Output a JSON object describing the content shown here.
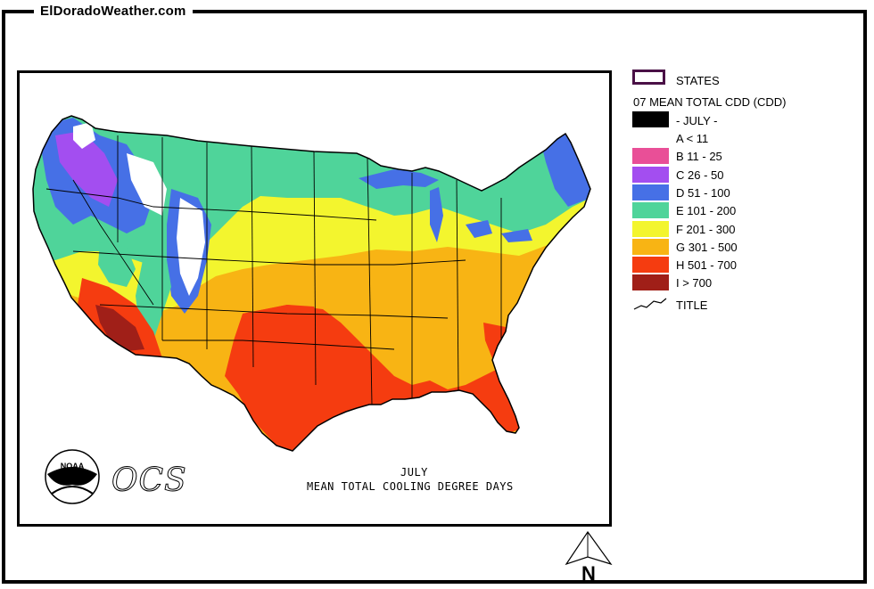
{
  "site": {
    "title": "ElDoradoWeather.com"
  },
  "map": {
    "caption_month": "JULY",
    "caption_title": "MEAN TOTAL COOLING DEGREE DAYS",
    "logo_agency": "NOAA",
    "logo_office": "OCS"
  },
  "legend": {
    "states_label": "STATES",
    "layer_title": "07 MEAN TOTAL CDD (CDD)",
    "month_label": "- JULY -",
    "classes": [
      {
        "code": "A",
        "label": "A < 11",
        "color": "#ffffff"
      },
      {
        "code": "B",
        "label": "B 11 - 25",
        "color": "#e94f97"
      },
      {
        "code": "C",
        "label": "C 26 - 50",
        "color": "#a34ef0"
      },
      {
        "code": "D",
        "label": "D 51 - 100",
        "color": "#4670e6"
      },
      {
        "code": "E",
        "label": "E 101 - 200",
        "color": "#4fd49a"
      },
      {
        "code": "F",
        "label": "F 201 - 300",
        "color": "#f3f52e"
      },
      {
        "code": "G",
        "label": "G 301 - 500",
        "color": "#f8b414"
      },
      {
        "code": "H",
        "label": "H 501 - 700",
        "color": "#f53c10"
      },
      {
        "code": "I",
        "label": "I > 700",
        "color": "#a01f18"
      }
    ],
    "title_label": "TITLE"
  },
  "compass": {
    "label": "N"
  }
}
